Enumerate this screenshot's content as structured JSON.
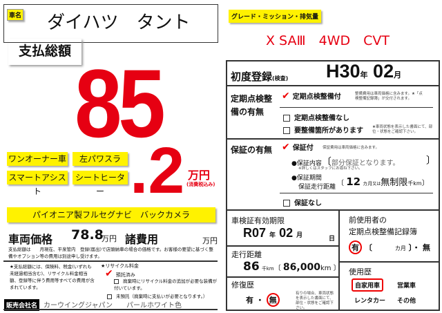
{
  "car_name": {
    "label": "車名",
    "value": "ダイハツ　タント"
  },
  "grade": {
    "label": "グレード・ミッション・排気量",
    "value": "X SAⅢ　4WD　CVT"
  },
  "total": {
    "label": "支払総額",
    "big": "85",
    "decimal": ".2",
    "unit": "万円",
    "tax_note": "(消費税込み)"
  },
  "tags": [
    "ワンオーナー車",
    "左パワスラ",
    "スマートアシスト",
    "シートヒーター"
  ],
  "equipment": "パイオニア製フルセグナビ　バックカメラ",
  "vehicle_price": {
    "label": "車両価格",
    "value": "78.8",
    "unit": "万円",
    "fees_label": "諸費用",
    "fees_unit": "万円"
  },
  "price_note": "支払総額は　　月現在、平泉管内　登録(届出)で店頭納車の場合の価格です。お客様の要望に基づく整備やオプション等の費用は別途申し受けます。",
  "star_note": "★支払総額には、保険料、税金(いずれも未経過相当含む)、リサイクル料金相当額、登録等に伴う費用等すべての費用が含まれています。",
  "recycle": {
    "label": "★リサイクル料金",
    "deposited": "預託済み",
    "option1": "廃棄時にリサイクル料金の追加が必要な装備が付いています。",
    "option2": "未預託（廃棄時に支払いが必要となります。）"
  },
  "dealer": {
    "label": "販売会社名",
    "value": "カーウイングジャパン",
    "color": "パールホワイト色"
  },
  "first_reg": {
    "label": "初度登録",
    "sub": "(検査)",
    "year": "H30",
    "year_unit": "年",
    "month": "02",
    "month_unit": "月"
  },
  "inspection": {
    "label": "定期点検整備の有無",
    "opt1": "定期点検整備付",
    "opt1_note": "整備費用は車両価格に含みます。★「点検整備記録簿」が交付されます。",
    "opt2": "定期点検整備なし",
    "opt3": "要整備箇所があります",
    "opt3_note": "★車両状態を表示した書面にて、部位・状態をご確認下さい。"
  },
  "warranty": {
    "label": "保証の有無",
    "opt1": "保証付",
    "opt1_note": "保証費用は車両価格に含みます。",
    "content_label": "●保証内容",
    "content": "部分保証となります。",
    "content_note": "※詳しくはスタッフにお尋ね下さい。",
    "period_label": "●保証期間",
    "distance_label": "保証走行距離",
    "months": "12",
    "months_unit": "カ月",
    "or": "又は",
    "distance": "無制限",
    "distance_unit": "千km",
    "opt2": "保証なし"
  },
  "shaken": {
    "label": "車検証有効期限",
    "year": "R07",
    "year_unit": "年",
    "month": "02",
    "month_unit": "月",
    "day_unit": "日"
  },
  "mileage": {
    "label": "走行距離",
    "value": "86",
    "unit": "千km",
    "exact": "86,000",
    "exact_unit": "km"
  },
  "repair": {
    "label": "修復歴",
    "yes": "有",
    "sep": "・",
    "no": "無",
    "note": "有りの場合、車両状態を表示した書面にて、部位・状態をご確認下さい。"
  },
  "prev_owner": {
    "label1": "前使用者の",
    "label2": "定期点検整備記録簿",
    "yes": "有",
    "months": "カ月",
    "no": "無"
  },
  "usage": {
    "label": "使用歴",
    "opt1": "自家用車",
    "opt2": "営業車",
    "opt3": "レンタカー",
    "opt4": "その他"
  },
  "colors": {
    "red": "#e60012",
    "yellow": "#fff200"
  }
}
